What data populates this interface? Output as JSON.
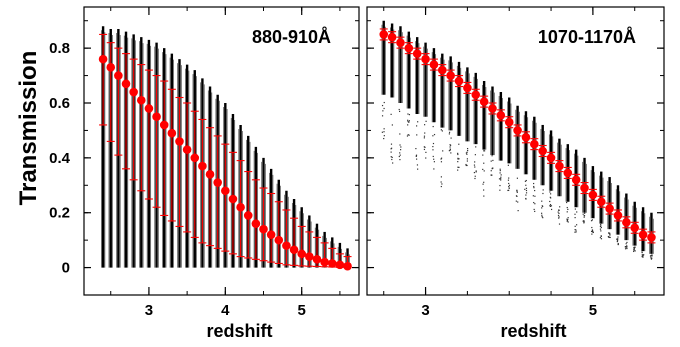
{
  "figure": {
    "ylabel": "Transmission"
  },
  "chart_data": [
    {
      "type": "scatter",
      "title": "880-910Å",
      "xlabel": "redshift",
      "ylabel": "Transmission",
      "xlim": [
        2.15,
        5.75
      ],
      "ylim": [
        -0.1,
        0.95
      ],
      "xticks": [
        3,
        4,
        5
      ],
      "yticks": [
        0,
        0.2,
        0.4,
        0.6,
        0.8
      ],
      "grid": false,
      "redshift": [
        2.4,
        2.5,
        2.6,
        2.7,
        2.8,
        2.9,
        3.0,
        3.1,
        3.2,
        3.3,
        3.4,
        3.5,
        3.6,
        3.7,
        3.8,
        3.9,
        4.0,
        4.1,
        4.2,
        4.3,
        4.4,
        4.5,
        4.6,
        4.7,
        4.8,
        4.9,
        5.0,
        5.1,
        5.2,
        5.3,
        5.4,
        5.5,
        5.6
      ],
      "mean_transmission": [
        0.76,
        0.73,
        0.7,
        0.67,
        0.64,
        0.61,
        0.58,
        0.55,
        0.52,
        0.49,
        0.46,
        0.43,
        0.4,
        0.37,
        0.34,
        0.31,
        0.28,
        0.25,
        0.22,
        0.19,
        0.16,
        0.14,
        0.12,
        0.1,
        0.08,
        0.065,
        0.05,
        0.04,
        0.03,
        0.02,
        0.015,
        0.01,
        0.005
      ],
      "err_upper": [
        0.85,
        0.82,
        0.8,
        0.78,
        0.76,
        0.74,
        0.72,
        0.7,
        0.68,
        0.65,
        0.62,
        0.6,
        0.57,
        0.54,
        0.51,
        0.48,
        0.45,
        0.42,
        0.39,
        0.35,
        0.32,
        0.29,
        0.27,
        0.24,
        0.21,
        0.18,
        0.15,
        0.13,
        0.11,
        0.09,
        0.07,
        0.05,
        0.04
      ],
      "err_lower": [
        0.52,
        0.46,
        0.41,
        0.36,
        0.32,
        0.28,
        0.25,
        0.22,
        0.19,
        0.17,
        0.15,
        0.13,
        0.11,
        0.09,
        0.08,
        0.07,
        0.06,
        0.05,
        0.04,
        0.035,
        0.03,
        0.025,
        0.02,
        0.015,
        0.01,
        0.008,
        0.006,
        0.005,
        0.004,
        0.003,
        0.002,
        0.001,
        0.0
      ],
      "sample_max": [
        0.88,
        0.87,
        0.87,
        0.86,
        0.85,
        0.84,
        0.83,
        0.82,
        0.8,
        0.78,
        0.76,
        0.74,
        0.72,
        0.69,
        0.66,
        0.63,
        0.6,
        0.56,
        0.52,
        0.48,
        0.44,
        0.4,
        0.36,
        0.32,
        0.28,
        0.25,
        0.22,
        0.19,
        0.16,
        0.13,
        0.11,
        0.09,
        0.07
      ],
      "sample_min": [
        0,
        0,
        0,
        0,
        0,
        0,
        0,
        0,
        0,
        0,
        0,
        0,
        0,
        0,
        0,
        0,
        0,
        0,
        0,
        0,
        0,
        0,
        0,
        0,
        0,
        0,
        0,
        0,
        0,
        0,
        0,
        0,
        0
      ],
      "colors": {
        "samples": "#000000",
        "mean": "#ff0000",
        "errorbar": "#ff0000"
      }
    },
    {
      "type": "scatter",
      "title": "1070-1170Å",
      "xlabel": "redshift",
      "ylabel": "Transmission",
      "xlim": [
        2.3,
        5.85
      ],
      "ylim": [
        -0.1,
        0.95
      ],
      "xticks": [
        3,
        5
      ],
      "yticks": [
        0,
        0.2,
        0.4,
        0.6,
        0.8
      ],
      "grid": false,
      "redshift": [
        2.5,
        2.6,
        2.7,
        2.8,
        2.9,
        3.0,
        3.1,
        3.2,
        3.3,
        3.4,
        3.5,
        3.6,
        3.7,
        3.8,
        3.9,
        4.0,
        4.1,
        4.2,
        4.3,
        4.4,
        4.5,
        4.6,
        4.7,
        4.8,
        4.9,
        5.0,
        5.1,
        5.2,
        5.3,
        5.4,
        5.5,
        5.6,
        5.7
      ],
      "mean_transmission": [
        0.85,
        0.84,
        0.82,
        0.8,
        0.78,
        0.76,
        0.74,
        0.72,
        0.7,
        0.68,
        0.655,
        0.63,
        0.605,
        0.58,
        0.555,
        0.53,
        0.5,
        0.475,
        0.45,
        0.425,
        0.4,
        0.37,
        0.345,
        0.32,
        0.29,
        0.265,
        0.24,
        0.215,
        0.19,
        0.165,
        0.145,
        0.12,
        0.11
      ],
      "err_upper": [
        0.87,
        0.86,
        0.84,
        0.82,
        0.8,
        0.78,
        0.76,
        0.74,
        0.72,
        0.7,
        0.675,
        0.65,
        0.625,
        0.6,
        0.575,
        0.55,
        0.52,
        0.495,
        0.47,
        0.445,
        0.42,
        0.39,
        0.365,
        0.34,
        0.31,
        0.285,
        0.26,
        0.235,
        0.21,
        0.185,
        0.165,
        0.14,
        0.13
      ],
      "err_lower": [
        0.83,
        0.82,
        0.8,
        0.78,
        0.76,
        0.74,
        0.72,
        0.7,
        0.68,
        0.66,
        0.635,
        0.61,
        0.585,
        0.56,
        0.535,
        0.51,
        0.48,
        0.455,
        0.43,
        0.405,
        0.38,
        0.35,
        0.325,
        0.3,
        0.27,
        0.245,
        0.22,
        0.195,
        0.17,
        0.145,
        0.125,
        0.1,
        0.09
      ],
      "sample_max": [
        0.9,
        0.89,
        0.88,
        0.86,
        0.84,
        0.82,
        0.8,
        0.78,
        0.77,
        0.75,
        0.73,
        0.71,
        0.68,
        0.66,
        0.64,
        0.62,
        0.59,
        0.57,
        0.55,
        0.52,
        0.5,
        0.47,
        0.45,
        0.43,
        0.4,
        0.37,
        0.35,
        0.33,
        0.3,
        0.27,
        0.24,
        0.22,
        0.2
      ],
      "sample_min": [
        0.63,
        0.62,
        0.6,
        0.58,
        0.56,
        0.55,
        0.53,
        0.51,
        0.5,
        0.48,
        0.46,
        0.45,
        0.43,
        0.41,
        0.39,
        0.38,
        0.36,
        0.34,
        0.32,
        0.3,
        0.28,
        0.26,
        0.24,
        0.22,
        0.2,
        0.18,
        0.16,
        0.14,
        0.12,
        0.1,
        0.08,
        0.06,
        0.05
      ],
      "outliers_min": [
        0.47,
        0.38,
        0.33,
        0.45,
        0.3,
        0.4,
        0.35,
        0.28,
        0.42,
        0.33,
        0.36,
        0.3,
        0.26,
        0.33,
        0.28,
        0.24,
        0.2,
        0.25,
        0.2,
        0.18,
        0.21,
        0.16,
        0.15,
        0.13,
        0.16,
        0.12,
        0.1,
        0.11,
        0.08,
        0.07,
        0.06,
        0.04,
        0.03
      ],
      "colors": {
        "samples": "#000000",
        "mean": "#ff0000",
        "errorbar": "#ff0000"
      }
    }
  ]
}
